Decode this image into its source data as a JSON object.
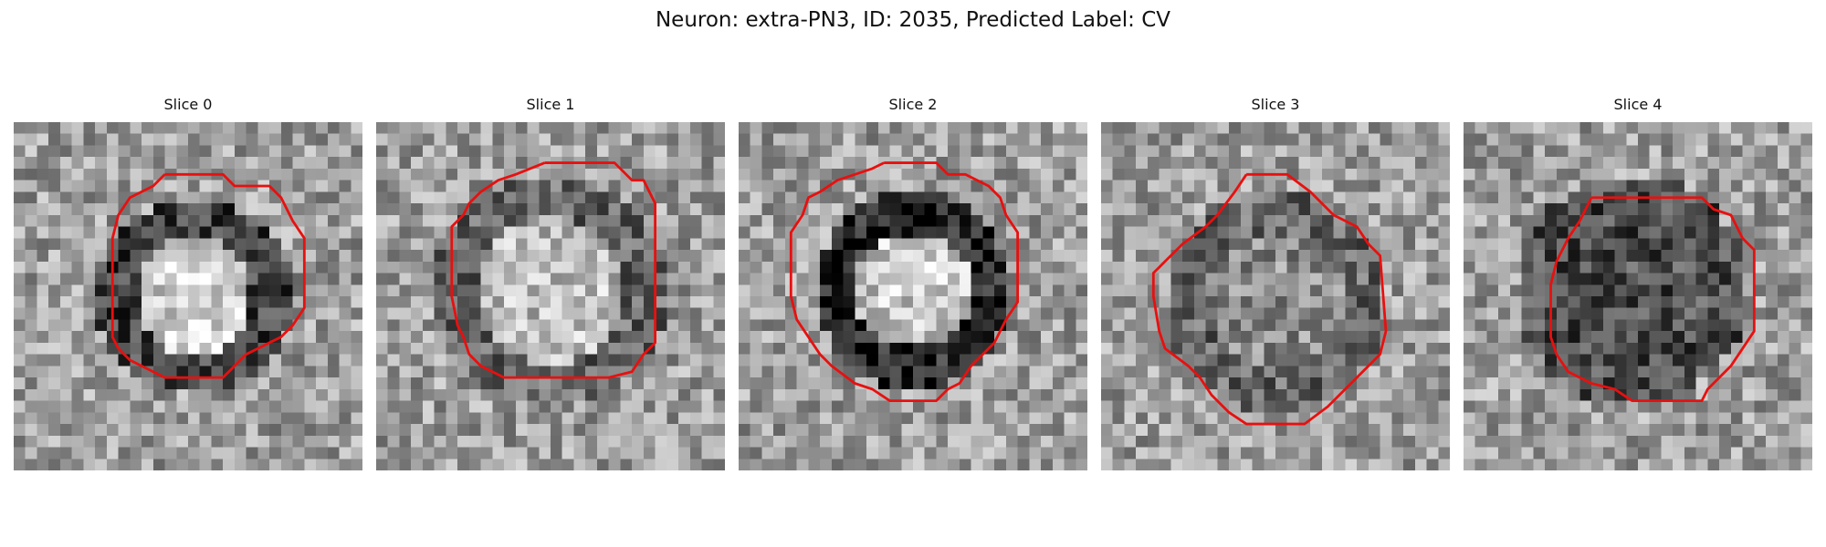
{
  "figure": {
    "title": "Neuron: extra-PN3, ID: 2035, Predicted Label: CV"
  },
  "panels": [
    {
      "title": "Slice 0",
      "seed": 11,
      "blob": {
        "cx": 15.5,
        "cy": 15.0,
        "r": 6.5,
        "core_brightness": 0.82,
        "ring_darkness": 0.25
      },
      "contour": [
        [
          13,
          4.5
        ],
        [
          18,
          4.5
        ],
        [
          19,
          5.5
        ],
        [
          22,
          5.5
        ],
        [
          23,
          6.5
        ],
        [
          24,
          8.5
        ],
        [
          25,
          10
        ],
        [
          25,
          16
        ],
        [
          24,
          17.5
        ],
        [
          23,
          18.5
        ],
        [
          22,
          19
        ],
        [
          20,
          20
        ],
        [
          19,
          21
        ],
        [
          18,
          22
        ],
        [
          13,
          22
        ],
        [
          12,
          21.5
        ],
        [
          10,
          20.5
        ],
        [
          9,
          19.5
        ],
        [
          8.5,
          18.5
        ],
        [
          8.5,
          10
        ],
        [
          9,
          8
        ],
        [
          10,
          6.5
        ],
        [
          11,
          6
        ],
        [
          12,
          5.5
        ],
        [
          13,
          4.5
        ]
      ]
    },
    {
      "title": "Slice 1",
      "seed": 23,
      "blob": {
        "cx": 15.0,
        "cy": 14.5,
        "r": 8.0,
        "core_brightness": 0.74,
        "ring_darkness": 0.4
      },
      "contour": [
        [
          14.5,
          3.5
        ],
        [
          20.5,
          3.5
        ],
        [
          22,
          5
        ],
        [
          23,
          5
        ],
        [
          24,
          7
        ],
        [
          24,
          19
        ],
        [
          23,
          20
        ],
        [
          22,
          21.5
        ],
        [
          20,
          22
        ],
        [
          11,
          22
        ],
        [
          10,
          21.5
        ],
        [
          9,
          21
        ],
        [
          8,
          20
        ],
        [
          7.5,
          18.5
        ],
        [
          7,
          17.5
        ],
        [
          6.5,
          15
        ],
        [
          6.5,
          9
        ],
        [
          7.5,
          8
        ],
        [
          8,
          7
        ],
        [
          9,
          6
        ],
        [
          10.5,
          5
        ],
        [
          12,
          4.5
        ],
        [
          14.5,
          3.5
        ]
      ]
    },
    {
      "title": "Slice 2",
      "seed": 37,
      "blob": {
        "cx": 15.0,
        "cy": 14.5,
        "r": 6.5,
        "core_brightness": 0.78,
        "ring_darkness": 0.15
      },
      "contour": [
        [
          12.5,
          3.5
        ],
        [
          17,
          3.5
        ],
        [
          18,
          4.5
        ],
        [
          19.5,
          4.5
        ],
        [
          21.5,
          5.5
        ],
        [
          22.5,
          6.5
        ],
        [
          23,
          8
        ],
        [
          24,
          9.5
        ],
        [
          24,
          15.5
        ],
        [
          23,
          17
        ],
        [
          22,
          19
        ],
        [
          21,
          20
        ],
        [
          20,
          21
        ],
        [
          19,
          22.5
        ],
        [
          18,
          23
        ],
        [
          17,
          24
        ],
        [
          13,
          24
        ],
        [
          11.5,
          23
        ],
        [
          10,
          22.5
        ],
        [
          8,
          21
        ],
        [
          7,
          20
        ],
        [
          6,
          18.5
        ],
        [
          5,
          17
        ],
        [
          4.5,
          15
        ],
        [
          4.5,
          9.5
        ],
        [
          5.5,
          8
        ],
        [
          6,
          6.5
        ],
        [
          7,
          6
        ],
        [
          8.5,
          5
        ],
        [
          10,
          4.5
        ],
        [
          11.5,
          4
        ],
        [
          12.5,
          3.5
        ]
      ]
    },
    {
      "title": "Slice 3",
      "seed": 53,
      "blob": {
        "cx": 15.0,
        "cy": 15.5,
        "r": 7.5,
        "core_brightness": 0.55,
        "ring_darkness": 0.4
      },
      "contour": [
        [
          12.5,
          4.5
        ],
        [
          16,
          4.5
        ],
        [
          18,
          6
        ],
        [
          20,
          8
        ],
        [
          22,
          9
        ],
        [
          23,
          10.5
        ],
        [
          24,
          11.5
        ],
        [
          24.5,
          18
        ],
        [
          24,
          20
        ],
        [
          23,
          21
        ],
        [
          22,
          22
        ],
        [
          21,
          23
        ],
        [
          19.5,
          24.5
        ],
        [
          17.5,
          26
        ],
        [
          12.5,
          26
        ],
        [
          11,
          25
        ],
        [
          9.5,
          23.5
        ],
        [
          8.5,
          22
        ],
        [
          7.5,
          21
        ],
        [
          5.5,
          19.5
        ],
        [
          5,
          18
        ],
        [
          4.5,
          15
        ],
        [
          4.5,
          13
        ],
        [
          5.5,
          12
        ],
        [
          7,
          10.5
        ],
        [
          9,
          9
        ],
        [
          10,
          8
        ],
        [
          11.5,
          6
        ],
        [
          12.5,
          4.5
        ]
      ]
    },
    {
      "title": "Slice 4",
      "seed": 71,
      "blob": {
        "cx": 14.5,
        "cy": 14.5,
        "r": 8.0,
        "core_brightness": 0.3,
        "ring_darkness": 0.3
      },
      "contour": [
        [
          11,
          6.5
        ],
        [
          20.5,
          6.5
        ],
        [
          21.5,
          7.5
        ],
        [
          23,
          8
        ],
        [
          24,
          10
        ],
        [
          25,
          11
        ],
        [
          25,
          18
        ],
        [
          24,
          19.5
        ],
        [
          23,
          21
        ],
        [
          22,
          22
        ],
        [
          21,
          23
        ],
        [
          20.5,
          24
        ],
        [
          14.5,
          24
        ],
        [
          13,
          23
        ],
        [
          11,
          22.5
        ],
        [
          10,
          22
        ],
        [
          9,
          21.5
        ],
        [
          8,
          20
        ],
        [
          7.5,
          18.5
        ],
        [
          7.5,
          14
        ],
        [
          8,
          12
        ],
        [
          9,
          10
        ],
        [
          10,
          8.5
        ],
        [
          11,
          6.5
        ]
      ]
    }
  ]
}
